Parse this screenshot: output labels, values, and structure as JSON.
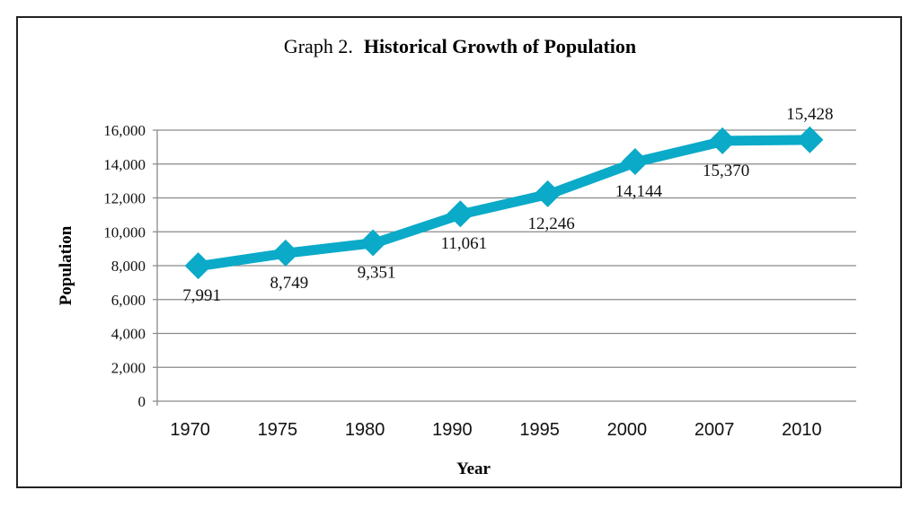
{
  "chart_data": {
    "type": "line",
    "title_prefix": "Graph 2.",
    "title": "Historical Growth of Population",
    "xlabel": "Year",
    "ylabel": "Population",
    "categories": [
      "1970",
      "1975",
      "1980",
      "1990",
      "1995",
      "2000",
      "2007",
      "2010"
    ],
    "series": [
      {
        "values": [
          7991,
          8749,
          9351,
          11061,
          12246,
          14144,
          15370,
          15428
        ],
        "labels": [
          "7,991",
          "8,749",
          "9,351",
          "11,061",
          "12,246",
          "14,144",
          "15,370",
          "15,428"
        ]
      }
    ],
    "ylim": [
      0,
      16000
    ],
    "yticks": [
      0,
      2000,
      4000,
      6000,
      8000,
      10000,
      12000,
      14000,
      16000
    ],
    "ytick_labels": [
      "0",
      "2,000",
      "4,000",
      "6,000",
      "8,000",
      "10,000",
      "12,000",
      "14,000",
      "16,000"
    ],
    "grid": true,
    "marker": "diamond",
    "line_color": "#0aaac8",
    "grid_color": "#8a8a8a"
  }
}
